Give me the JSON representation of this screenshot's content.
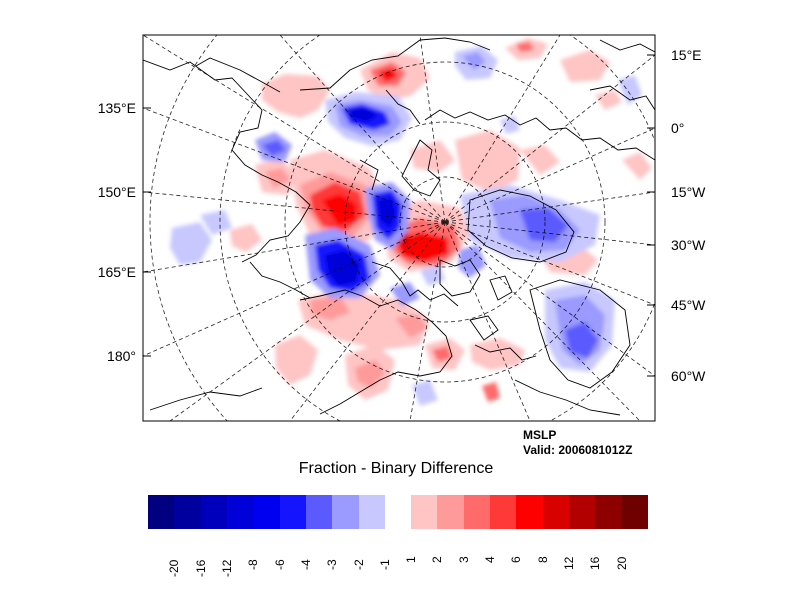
{
  "map": {
    "variable": "MSLP",
    "valid": "Valid: 2006081012Z",
    "colorbar_title": "Fraction - Binary Difference",
    "left_lon_labels": [
      "135°E",
      "150°E",
      "165°E",
      "180°"
    ],
    "right_lon_labels": [
      "15°E",
      "0°",
      "15°W",
      "30°W",
      "45°W",
      "60°W"
    ]
  },
  "colorbar": {
    "labels": [
      "-20",
      "-16",
      "-12",
      "-8",
      "-6",
      "-4",
      "-3",
      "-2",
      "-1",
      "1",
      "2",
      "3",
      "4",
      "6",
      "8",
      "12",
      "16",
      "20"
    ],
    "colors": [
      "#000080",
      "#00009e",
      "#0000bc",
      "#0000d9",
      "#0000f0",
      "#1414ff",
      "#5a5aff",
      "#9a9aff",
      "#c8c8ff",
      "#ffffff",
      "#ffc4c4",
      "#ff9a9a",
      "#ff6a6a",
      "#ff3838",
      "#ff0000",
      "#d90000",
      "#b20000",
      "#8e0000",
      "#6e0000"
    ]
  }
}
